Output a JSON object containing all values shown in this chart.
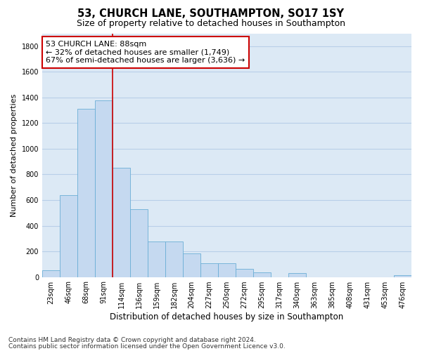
{
  "title": "53, CHURCH LANE, SOUTHAMPTON, SO17 1SY",
  "subtitle": "Size of property relative to detached houses in Southampton",
  "xlabel": "Distribution of detached houses by size in Southampton",
  "ylabel": "Number of detached properties",
  "footnote1": "Contains HM Land Registry data © Crown copyright and database right 2024.",
  "footnote2": "Contains public sector information licensed under the Open Government Licence v3.0.",
  "annotation_line1": "53 CHURCH LANE: 88sqm",
  "annotation_line2": "← 32% of detached houses are smaller (1,749)",
  "annotation_line3": "67% of semi-detached houses are larger (3,636) →",
  "bar_color": "#c5d9f0",
  "bar_edge_color": "#6baed6",
  "vline_color": "#cc0000",
  "vline_x": 3.5,
  "bg_color": "#dce9f5",
  "fig_bg_color": "#ffffff",
  "grid_color": "#b8cfe8",
  "categories": [
    "23sqm",
    "46sqm",
    "68sqm",
    "91sqm",
    "114sqm",
    "136sqm",
    "159sqm",
    "182sqm",
    "204sqm",
    "227sqm",
    "250sqm",
    "272sqm",
    "295sqm",
    "317sqm",
    "340sqm",
    "363sqm",
    "385sqm",
    "408sqm",
    "431sqm",
    "453sqm",
    "476sqm"
  ],
  "values": [
    55,
    640,
    1310,
    1375,
    850,
    530,
    275,
    275,
    185,
    105,
    105,
    65,
    38,
    0,
    30,
    0,
    0,
    0,
    0,
    0,
    15
  ],
  "ylim": [
    0,
    1900
  ],
  "yticks": [
    0,
    200,
    400,
    600,
    800,
    1000,
    1200,
    1400,
    1600,
    1800
  ],
  "title_fontsize": 10.5,
  "subtitle_fontsize": 9,
  "xlabel_fontsize": 8.5,
  "ylabel_fontsize": 8,
  "tick_fontsize": 7,
  "annotation_fontsize": 8,
  "footnote_fontsize": 6.5
}
